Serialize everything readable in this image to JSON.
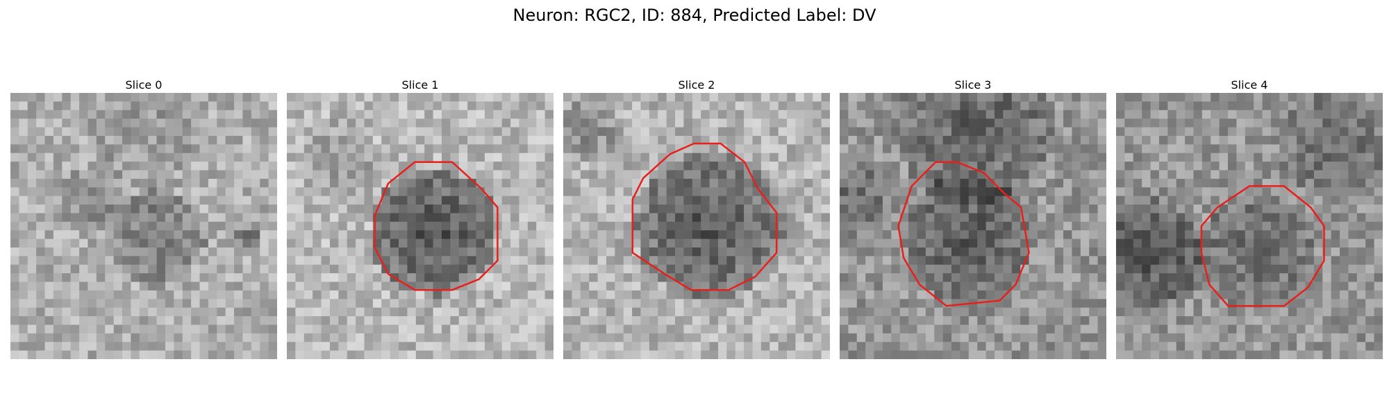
{
  "figure": {
    "title": "Neuron: RGC2, ID: 884, Predicted Label: DV",
    "contour_color": "#e8201c"
  },
  "panels": [
    {
      "title": "Slice 0",
      "contour": null
    },
    {
      "title": "Slice 1",
      "contour": "octagon"
    },
    {
      "title": "Slice 2",
      "contour": "octagon"
    },
    {
      "title": "Slice 3",
      "contour": "octagon"
    },
    {
      "title": "Slice 4",
      "contour": "octagon"
    }
  ]
}
